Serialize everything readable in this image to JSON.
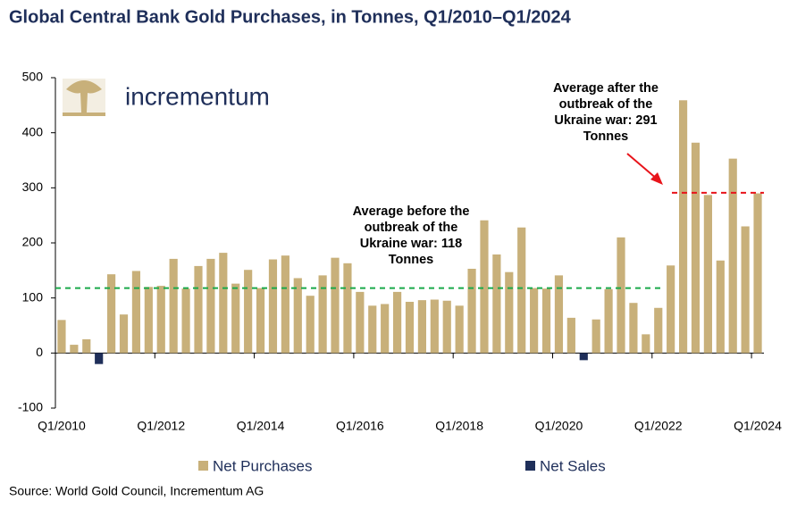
{
  "chart_data": {
    "type": "bar",
    "title": "Global Central Bank Gold Purchases, in Tonnes, Q1/2010–Q1/2024",
    "logo_text": "incrementum",
    "source": "Source: World Gold Council, Incrementum AG",
    "categories": [
      "Q1/2010",
      null,
      null,
      null,
      null,
      null,
      null,
      null,
      "Q1/2012",
      null,
      null,
      null,
      null,
      null,
      null,
      null,
      "Q1/2014",
      null,
      null,
      null,
      null,
      null,
      null,
      null,
      "Q1/2016",
      null,
      null,
      null,
      null,
      null,
      null,
      null,
      "Q1/2018",
      null,
      null,
      null,
      null,
      null,
      null,
      null,
      "Q1/2020",
      null,
      null,
      null,
      null,
      null,
      null,
      null,
      "Q1/2022",
      null,
      null,
      null,
      null,
      null,
      null,
      null,
      "Q1/2024"
    ],
    "series": [
      {
        "name": "Net Purchases",
        "color": "#c8b07a",
        "values": [
          60,
          15,
          25,
          null,
          143,
          70,
          149,
          120,
          122,
          171,
          117,
          158,
          171,
          182,
          126,
          151,
          118,
          170,
          177,
          136,
          104,
          141,
          173,
          163,
          111,
          86,
          89,
          111,
          93,
          96,
          97,
          95,
          86,
          153,
          241,
          179,
          147,
          228,
          118,
          117,
          141,
          64,
          null,
          61,
          116,
          210,
          91,
          34,
          82,
          159,
          459,
          382,
          287,
          168,
          353,
          230,
          290
        ]
      },
      {
        "name": "Net Sales",
        "color": "#1f2f5a",
        "values": [
          null,
          null,
          null,
          -20,
          null,
          null,
          null,
          null,
          null,
          null,
          null,
          null,
          null,
          null,
          null,
          null,
          null,
          null,
          null,
          null,
          null,
          null,
          null,
          null,
          null,
          null,
          null,
          null,
          null,
          null,
          null,
          null,
          null,
          null,
          null,
          null,
          null,
          null,
          null,
          null,
          null,
          null,
          -13,
          null,
          null,
          null,
          null,
          null,
          null,
          null,
          null,
          null,
          null,
          null,
          null,
          null,
          null
        ]
      }
    ],
    "ylim": [
      -100,
      500
    ],
    "yticks": [
      -100,
      0,
      100,
      200,
      300,
      400,
      500
    ],
    "annotations": [
      {
        "text": "Average before the outbreak of the Ukraine war: 118 Tonnes",
        "value": 118,
        "color": "#1aa94a"
      },
      {
        "text": "Average after the outbreak of the Ukraine war: 291 Tonnes",
        "value": 291,
        "color": "#e8141b"
      }
    ]
  }
}
